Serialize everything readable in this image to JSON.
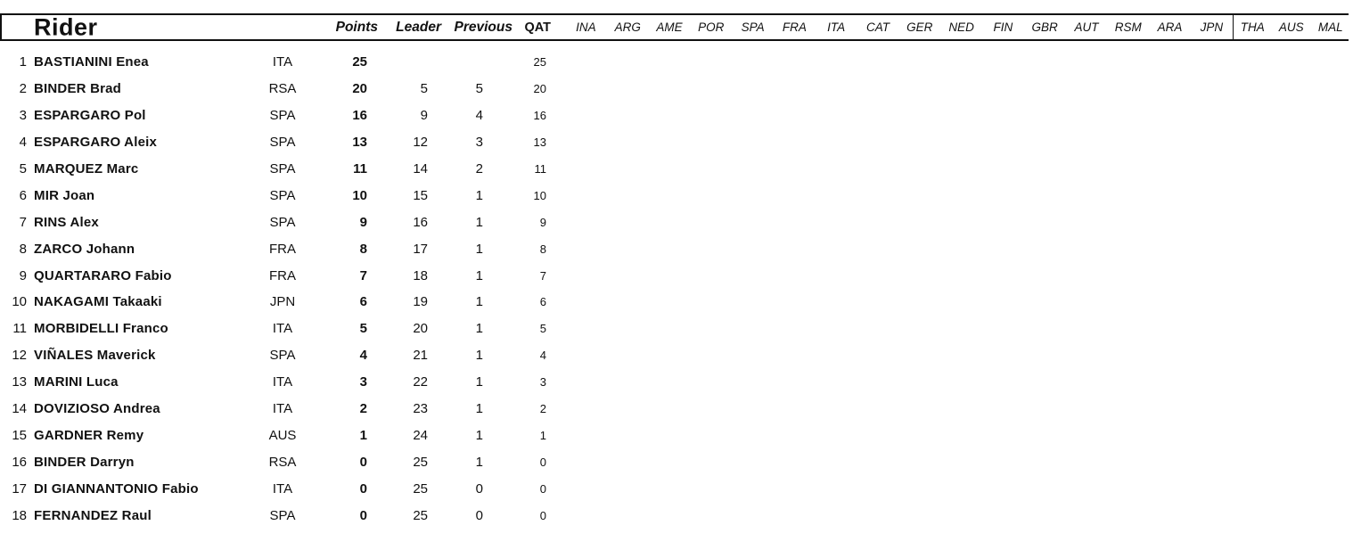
{
  "page": {
    "background": "#ffffff",
    "line_color": "#111111",
    "text_color": "#111111"
  },
  "table": {
    "rider_header": "Rider",
    "summary_columns": [
      {
        "key": "points",
        "label": "Points"
      },
      {
        "key": "leader",
        "label": "Leader"
      },
      {
        "key": "previous",
        "label": "Previous"
      }
    ],
    "completed_race_column": "QAT",
    "upcoming_race_columns": [
      "INA",
      "ARG",
      "AME",
      "POR",
      "SPA",
      "FRA",
      "ITA",
      "CAT",
      "GER",
      "NED",
      "FIN",
      "GBR",
      "AUT",
      "RSM",
      "ARA",
      "JPN",
      "THA",
      "AUS",
      "MAL"
    ],
    "rows": [
      {
        "position": "1",
        "rider": "BASTIANINI Enea",
        "nation": "ITA",
        "points": "25",
        "leader": "",
        "previous": "",
        "qat": "25"
      },
      {
        "position": "2",
        "rider": "BINDER Brad",
        "nation": "RSA",
        "points": "20",
        "leader": "5",
        "previous": "5",
        "qat": "20"
      },
      {
        "position": "3",
        "rider": "ESPARGARO Pol",
        "nation": "SPA",
        "points": "16",
        "leader": "9",
        "previous": "4",
        "qat": "16"
      },
      {
        "position": "4",
        "rider": "ESPARGARO Aleix",
        "nation": "SPA",
        "points": "13",
        "leader": "12",
        "previous": "3",
        "qat": "13"
      },
      {
        "position": "5",
        "rider": "MARQUEZ Marc",
        "nation": "SPA",
        "points": "11",
        "leader": "14",
        "previous": "2",
        "qat": "11"
      },
      {
        "position": "6",
        "rider": "MIR Joan",
        "nation": "SPA",
        "points": "10",
        "leader": "15",
        "previous": "1",
        "qat": "10"
      },
      {
        "position": "7",
        "rider": "RINS Alex",
        "nation": "SPA",
        "points": "9",
        "leader": "16",
        "previous": "1",
        "qat": "9"
      },
      {
        "position": "8",
        "rider": "ZARCO Johann",
        "nation": "FRA",
        "points": "8",
        "leader": "17",
        "previous": "1",
        "qat": "8"
      },
      {
        "position": "9",
        "rider": "QUARTARARO Fabio",
        "nation": "FRA",
        "points": "7",
        "leader": "18",
        "previous": "1",
        "qat": "7"
      },
      {
        "position": "10",
        "rider": "NAKAGAMI Takaaki",
        "nation": "JPN",
        "points": "6",
        "leader": "19",
        "previous": "1",
        "qat": "6"
      },
      {
        "position": "11",
        "rider": "MORBIDELLI Franco",
        "nation": "ITA",
        "points": "5",
        "leader": "20",
        "previous": "1",
        "qat": "5"
      },
      {
        "position": "12",
        "rider": "VIÑALES Maverick",
        "nation": "SPA",
        "points": "4",
        "leader": "21",
        "previous": "1",
        "qat": "4"
      },
      {
        "position": "13",
        "rider": "MARINI Luca",
        "nation": "ITA",
        "points": "3",
        "leader": "22",
        "previous": "1",
        "qat": "3"
      },
      {
        "position": "14",
        "rider": "DOVIZIOSO Andrea",
        "nation": "ITA",
        "points": "2",
        "leader": "23",
        "previous": "1",
        "qat": "2"
      },
      {
        "position": "15",
        "rider": "GARDNER Remy",
        "nation": "AUS",
        "points": "1",
        "leader": "24",
        "previous": "1",
        "qat": "1"
      },
      {
        "position": "16",
        "rider": "BINDER Darryn",
        "nation": "RSA",
        "points": "0",
        "leader": "25",
        "previous": "1",
        "qat": "0"
      },
      {
        "position": "17",
        "rider": "DI GIANNANTONIO Fabio",
        "nation": "ITA",
        "points": "0",
        "leader": "25",
        "previous": "0",
        "qat": "0"
      },
      {
        "position": "18",
        "rider": "FERNANDEZ Raul",
        "nation": "SPA",
        "points": "0",
        "leader": "25",
        "previous": "0",
        "qat": "0"
      }
    ]
  }
}
